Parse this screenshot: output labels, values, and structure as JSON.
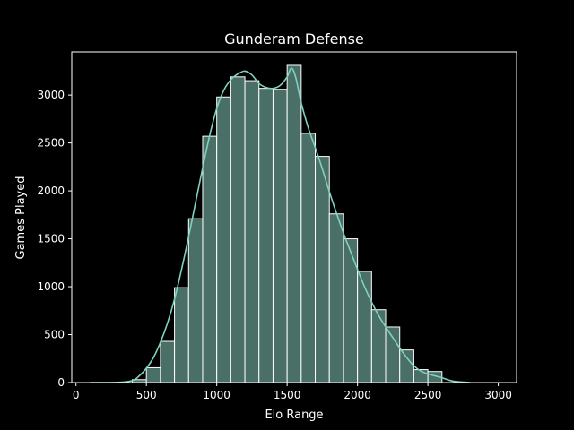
{
  "chart_data": {
    "type": "bar",
    "title": "Gunderam Defense",
    "xlabel": "Elo Range",
    "ylabel": "Games Played",
    "xlim": [
      -30,
      3130
    ],
    "ylim": [
      0,
      3450
    ],
    "xticks": [
      0,
      500,
      1000,
      1500,
      2000,
      2500,
      3000
    ],
    "yticks": [
      0,
      500,
      1000,
      1500,
      2000,
      2500,
      3000
    ],
    "grid": false,
    "legend": "none",
    "bin_width": 100,
    "bins": [
      {
        "start": 400,
        "end": 500,
        "value": 30
      },
      {
        "start": 500,
        "end": 600,
        "value": 155
      },
      {
        "start": 600,
        "end": 700,
        "value": 430
      },
      {
        "start": 700,
        "end": 800,
        "value": 990
      },
      {
        "start": 800,
        "end": 900,
        "value": 1710
      },
      {
        "start": 900,
        "end": 1000,
        "value": 2570
      },
      {
        "start": 1000,
        "end": 1100,
        "value": 2980
      },
      {
        "start": 1100,
        "end": 1200,
        "value": 3190
      },
      {
        "start": 1200,
        "end": 1300,
        "value": 3150
      },
      {
        "start": 1300,
        "end": 1400,
        "value": 3070
      },
      {
        "start": 1400,
        "end": 1500,
        "value": 3060
      },
      {
        "start": 1500,
        "end": 1600,
        "value": 3310
      },
      {
        "start": 1600,
        "end": 1700,
        "value": 2600
      },
      {
        "start": 1700,
        "end": 1800,
        "value": 2360
      },
      {
        "start": 1800,
        "end": 1900,
        "value": 1760
      },
      {
        "start": 1900,
        "end": 2000,
        "value": 1500
      },
      {
        "start": 2000,
        "end": 2100,
        "value": 1160
      },
      {
        "start": 2100,
        "end": 2200,
        "value": 760
      },
      {
        "start": 2200,
        "end": 2300,
        "value": 580
      },
      {
        "start": 2300,
        "end": 2400,
        "value": 340
      },
      {
        "start": 2400,
        "end": 2500,
        "value": 135
      },
      {
        "start": 2500,
        "end": 2600,
        "value": 115
      },
      {
        "start": 2600,
        "end": 2700,
        "value": 0
      }
    ],
    "kde": {
      "x": [
        100,
        300,
        400,
        450,
        500,
        550,
        600,
        650,
        700,
        750,
        800,
        850,
        900,
        950,
        1000,
        1050,
        1100,
        1150,
        1200,
        1250,
        1300,
        1350,
        1400,
        1450,
        1500,
        1530,
        1560,
        1600,
        1650,
        1700,
        1750,
        1800,
        1850,
        1900,
        1950,
        2000,
        2050,
        2100,
        2150,
        2200,
        2250,
        2300,
        2350,
        2400,
        2450,
        2500,
        2550,
        2600,
        2650,
        2700,
        2800
      ],
      "y": [
        0,
        2,
        20,
        70,
        150,
        260,
        420,
        620,
        870,
        1180,
        1520,
        1880,
        2240,
        2580,
        2860,
        3050,
        3160,
        3220,
        3250,
        3210,
        3120,
        3080,
        3070,
        3100,
        3190,
        3280,
        3190,
        2920,
        2660,
        2450,
        2230,
        1990,
        1770,
        1560,
        1370,
        1180,
        1000,
        840,
        700,
        580,
        470,
        360,
        260,
        175,
        120,
        90,
        70,
        50,
        25,
        10,
        0
      ]
    },
    "colors": {
      "bar_fill": "#4a6f66",
      "bar_edge": "#ffffff",
      "kde_line": "#7fd1c0",
      "axes": "#ffffff",
      "background": "#000000"
    }
  }
}
